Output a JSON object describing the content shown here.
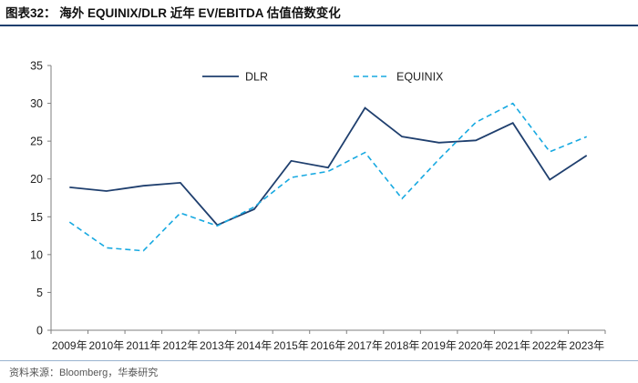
{
  "figure": {
    "title": "图表32： 海外 EQUINIX/DLR 近年 EV/EBITDA 估值倍数变化",
    "source": "资料来源：Bloomberg，华泰研究"
  },
  "chart_data": {
    "type": "line",
    "title": "海外 EQUINIX/DLR 近年 EV/EBITDA 估值倍数变化",
    "xlabel": "",
    "ylabel": "",
    "categories": [
      "2009年",
      "2010年",
      "2011年",
      "2012年",
      "2013年",
      "2014年",
      "2015年",
      "2016年",
      "2017年",
      "2018年",
      "2019年",
      "2020年",
      "2021年",
      "2022年",
      "2023年"
    ],
    "ylim": [
      0,
      35
    ],
    "yticks": [
      0,
      5,
      10,
      15,
      20,
      25,
      30,
      35
    ],
    "grid": false,
    "legend_position": "top",
    "series": [
      {
        "name": "DLR",
        "color": "#1f3f6e",
        "style": "solid",
        "values": [
          18.9,
          18.4,
          19.1,
          19.5,
          13.9,
          16.0,
          22.4,
          21.5,
          29.4,
          25.6,
          24.8,
          25.1,
          27.4,
          19.9,
          23.1
        ]
      },
      {
        "name": "EQUINIX",
        "color": "#17a9e1",
        "style": "dashed",
        "values": [
          14.3,
          10.9,
          10.5,
          15.5,
          13.8,
          16.3,
          20.2,
          21.0,
          23.5,
          17.4,
          22.6,
          27.5,
          30.0,
          23.6,
          25.6
        ]
      }
    ]
  }
}
